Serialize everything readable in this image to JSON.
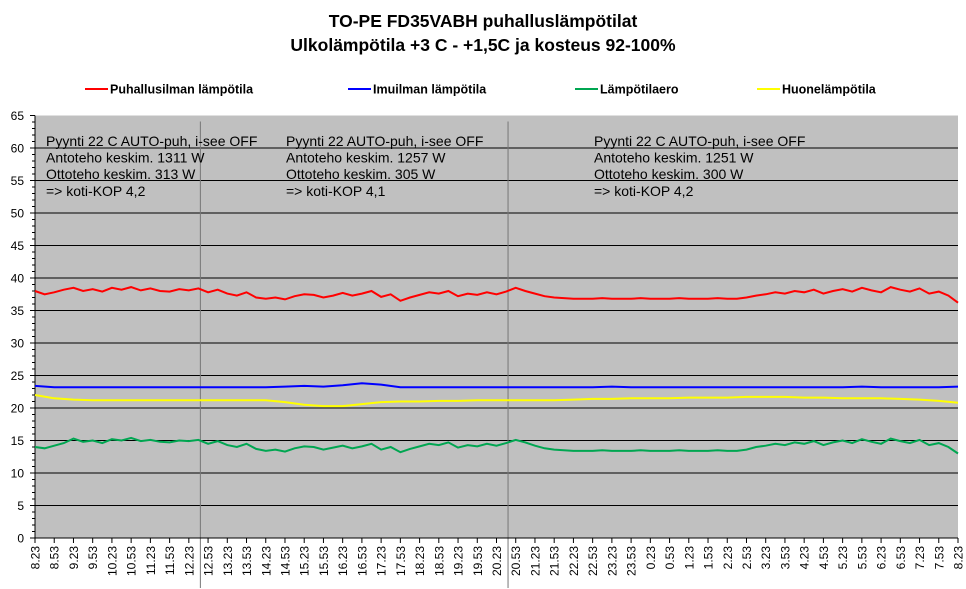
{
  "chart_data": {
    "type": "line",
    "title": [
      "TO-PE FD35VABH puhalluslämpötilat",
      "Ulkolämpötila +3 C - +1,5C ja kosteus 92-100%"
    ],
    "ylim": [
      0,
      65
    ],
    "yticks": [
      "0",
      "5",
      "10",
      "15",
      "20",
      "25",
      "30",
      "35",
      "40",
      "45",
      "50",
      "55",
      "60",
      "65"
    ],
    "x_labels": [
      "8.23",
      "8.53",
      "9.23",
      "9.53",
      "10.23",
      "10.53",
      "11.23",
      "11.53",
      "12.23",
      "12.53",
      "13.23",
      "13.53",
      "14.23",
      "14.53",
      "15.23",
      "15.53",
      "16.23",
      "16.53",
      "17.23",
      "17.53",
      "18.23",
      "18.53",
      "19.23",
      "19.53",
      "20.23",
      "20.53",
      "21.23",
      "21.53",
      "22.23",
      "22.53",
      "23.23",
      "23.53",
      "0.23",
      "0.53",
      "1.23",
      "1.53",
      "2.23",
      "2.53",
      "3.23",
      "3.53",
      "4.23",
      "4.53",
      "5.23",
      "5.53",
      "6.23",
      "6.53",
      "7.23",
      "7.53",
      "8.23"
    ],
    "grid": "horizontal",
    "legend_position": "top",
    "separators_at_label_index": [
      8.6,
      24.6
    ],
    "series": [
      {
        "name": "Puhallusilman lämpötila",
        "color": "#ff0000",
        "values": [
          38.0,
          37.5,
          37.8,
          38.2,
          38.5,
          38.0,
          38.3,
          37.9,
          38.5,
          38.2,
          38.6,
          38.1,
          38.4,
          38.0,
          37.9,
          38.3,
          38.1,
          38.4,
          37.8,
          38.2,
          37.6,
          37.3,
          37.8,
          37.0,
          36.8,
          37.0,
          36.7,
          37.2,
          37.5,
          37.4,
          37.0,
          37.3,
          37.7,
          37.3,
          37.6,
          38.0,
          37.1,
          37.5,
          36.5,
          37.0,
          37.4,
          37.8,
          37.6,
          38.0,
          37.2,
          37.6,
          37.4,
          37.8,
          37.5,
          37.9,
          38.5,
          38.0,
          37.6,
          37.2,
          37.0,
          36.9,
          36.8,
          36.8,
          36.8,
          36.9,
          36.8,
          36.8,
          36.8,
          36.9,
          36.8,
          36.8,
          36.8,
          36.9,
          36.8,
          36.8,
          36.8,
          36.9,
          36.8,
          36.8,
          37.0,
          37.3,
          37.5,
          37.8,
          37.6,
          38.0,
          37.8,
          38.2,
          37.6,
          38.0,
          38.3,
          37.9,
          38.5,
          38.1,
          37.8,
          38.6,
          38.2,
          37.9,
          38.4,
          37.6,
          37.9,
          37.3,
          36.2
        ]
      },
      {
        "name": "Imuilman lämpötila",
        "color": "#0000ff",
        "values": [
          23.4,
          23.2,
          23.2,
          23.2,
          23.2,
          23.2,
          23.2,
          23.2,
          23.2,
          23.2,
          23.2,
          23.2,
          23.2,
          23.3,
          23.4,
          23.3,
          23.5,
          23.8,
          23.6,
          23.2,
          23.2,
          23.2,
          23.2,
          23.2,
          23.2,
          23.2,
          23.2,
          23.2,
          23.2,
          23.2,
          23.3,
          23.2,
          23.2,
          23.2,
          23.2,
          23.2,
          23.2,
          23.2,
          23.2,
          23.2,
          23.2,
          23.2,
          23.2,
          23.3,
          23.2,
          23.2,
          23.2,
          23.2,
          23.3
        ]
      },
      {
        "name": "Lämpötilaero",
        "color": "#00a651",
        "values": [
          14.0,
          13.8,
          14.2,
          14.6,
          15.3,
          14.8,
          15.0,
          14.6,
          15.2,
          15.0,
          15.4,
          14.9,
          15.1,
          14.8,
          14.7,
          15.0,
          14.9,
          15.1,
          14.5,
          14.9,
          14.3,
          14.0,
          14.5,
          13.7,
          13.4,
          13.6,
          13.3,
          13.8,
          14.1,
          14.0,
          13.6,
          13.9,
          14.2,
          13.8,
          14.1,
          14.5,
          13.6,
          14.0,
          13.2,
          13.7,
          14.1,
          14.5,
          14.3,
          14.7,
          13.9,
          14.3,
          14.1,
          14.5,
          14.2,
          14.6,
          15.1,
          14.7,
          14.2,
          13.8,
          13.6,
          13.5,
          13.4,
          13.4,
          13.4,
          13.5,
          13.4,
          13.4,
          13.4,
          13.5,
          13.4,
          13.4,
          13.4,
          13.5,
          13.4,
          13.4,
          13.4,
          13.5,
          13.4,
          13.4,
          13.6,
          14.0,
          14.2,
          14.5,
          14.3,
          14.7,
          14.5,
          14.9,
          14.3,
          14.7,
          15.0,
          14.6,
          15.2,
          14.8,
          14.5,
          15.3,
          14.9,
          14.6,
          15.1,
          14.3,
          14.6,
          14.0,
          13.0
        ]
      },
      {
        "name": "Huonelämpötila",
        "color": "#ffff00",
        "values": [
          22.0,
          21.5,
          21.3,
          21.2,
          21.2,
          21.2,
          21.2,
          21.2,
          21.2,
          21.2,
          21.2,
          21.2,
          21.2,
          20.9,
          20.5,
          20.3,
          20.3,
          20.6,
          20.9,
          21.0,
          21.0,
          21.1,
          21.1,
          21.2,
          21.2,
          21.2,
          21.2,
          21.2,
          21.3,
          21.4,
          21.4,
          21.5,
          21.5,
          21.5,
          21.6,
          21.6,
          21.6,
          21.7,
          21.7,
          21.7,
          21.6,
          21.6,
          21.5,
          21.5,
          21.5,
          21.4,
          21.3,
          21.1,
          20.8
        ]
      }
    ],
    "annotations": [
      {
        "lines": [
          "Pyynti 22 C AUTO-puh, i-see OFF",
          "Antoteho keskim. 1311 W",
          "Ottoteho keskim. 313 W",
          "=> koti-KOP 4,2"
        ]
      },
      {
        "lines": [
          "Pyynti 22 AUTO-puh, i-see OFF",
          "Antoteho keskim. 1257 W",
          "Ottoteho keskim. 305 W",
          "=> koti-KOP 4,1"
        ]
      },
      {
        "lines": [
          "Pyynti 22 C AUTO-puh, i-see OFF",
          "Antoteho keskim. 1251 W",
          "Ottoteho keskim. 300 W",
          "=> koti-KOP 4,2"
        ]
      }
    ],
    "plot_bg": "#c0c0c0"
  }
}
